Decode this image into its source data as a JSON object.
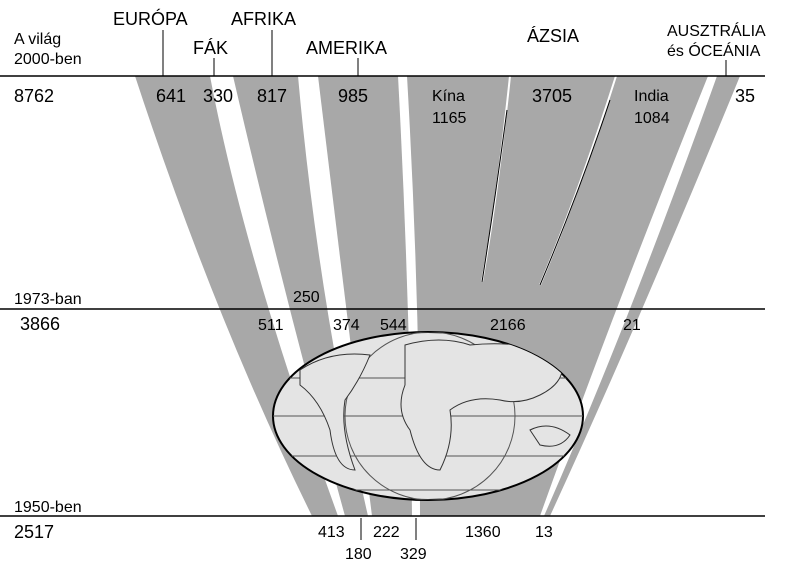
{
  "colors": {
    "band_fill": "#a8a8a8",
    "globe_fill": "#e4e4e4",
    "line": "#000000",
    "background": "#ffffff"
  },
  "years": {
    "y2000": {
      "label_1": "A világ",
      "label_2": "2000-ben",
      "total": "8762"
    },
    "y1973": {
      "label": "1973-ban",
      "total": "3866"
    },
    "y1950": {
      "label": "1950-ben",
      "total": "2517"
    }
  },
  "regions": {
    "europe": "EURÓPA",
    "fak": "FÁK",
    "africa": "AFRIKA",
    "america": "AMERIKA",
    "asia": "ÁZSIA",
    "australia_1": "AUSZTRÁLIA",
    "australia_2": "és ÓCEÁNIA"
  },
  "values_2000": {
    "europe": "641",
    "fak": "330",
    "africa": "817",
    "america": "985",
    "china_label": "Kína",
    "china": "1165",
    "asia_other": "3705",
    "india_label": "India",
    "india": "1084",
    "australia": "35"
  },
  "values_1973": {
    "fak": "250",
    "europe": "511",
    "africa": "374",
    "america": "544",
    "asia": "2166",
    "australia": "21"
  },
  "values_1950": {
    "europe": "413",
    "fak": "180",
    "africa": "222",
    "america": "329",
    "asia": "1360",
    "australia": "13"
  }
}
